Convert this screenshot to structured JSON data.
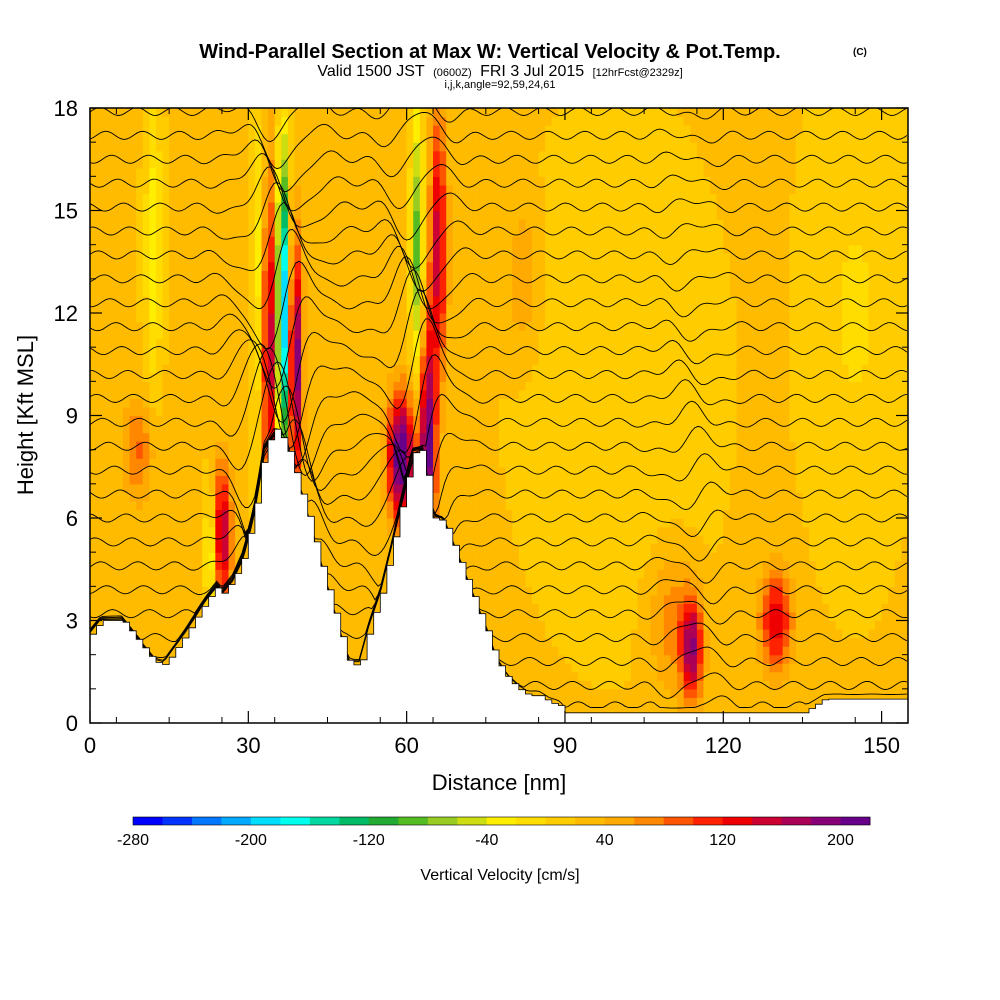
{
  "chart_data": {
    "type": "heatmap",
    "title": "Wind-Parallel Section at Max W: Vertical Velocity & Pot.Temp.",
    "copyright": "(C)",
    "subtitle_prefix": "Valid 1500 JST",
    "subtitle_utc": "(0600Z)",
    "subtitle_date": "FRI 3 Jul 2015",
    "subtitle_forecast": "[12hrFcst@2329z]",
    "subtitle_line2": "i,j,k,angle=92,59,24,61",
    "xlabel": "Distance [nm]",
    "ylabel": "Height [Kft MSL]",
    "xlim": [
      0,
      155
    ],
    "ylim": [
      0,
      18
    ],
    "x_ticks": [
      "0",
      "30",
      "60",
      "90",
      "120",
      "150"
    ],
    "x_tick_values": [
      0,
      30,
      60,
      90,
      120,
      150
    ],
    "y_ticks": [
      "0",
      "3",
      "6",
      "9",
      "12",
      "15",
      "18"
    ],
    "y_tick_values": [
      0,
      3,
      6,
      9,
      12,
      15,
      18
    ],
    "colorbar": {
      "label": "Vertical Velocity [cm/s]",
      "min": -280,
      "max": 220,
      "tick_labels": [
        "-280",
        "-200",
        "-120",
        "-40",
        "40",
        "120",
        "200"
      ],
      "tick_values": [
        -280,
        -200,
        -120,
        -40,
        40,
        120,
        200
      ],
      "colors": [
        "#0000ff",
        "#0033ff",
        "#0077ff",
        "#00aaff",
        "#00ddff",
        "#00ffee",
        "#00d8a0",
        "#00bb66",
        "#22aa33",
        "#55bb22",
        "#99cc22",
        "#ccdd11",
        "#ffee00",
        "#ffdd00",
        "#ffcc00",
        "#ffbb00",
        "#ffaa00",
        "#ff8800",
        "#ff5500",
        "#ff2200",
        "#ee0000",
        "#cc0033",
        "#aa0055",
        "#880077",
        "#660088"
      ]
    },
    "terrain": {
      "description": "Terrain heights along section (Kft)",
      "x": [
        0,
        2,
        6,
        12,
        14,
        18,
        20,
        22,
        24,
        25,
        27,
        29,
        31,
        33,
        35,
        37,
        39,
        41,
        43,
        45,
        47,
        49,
        51,
        53,
        55,
        57,
        59,
        61,
        63,
        65,
        67,
        69,
        71,
        73,
        75,
        77,
        79,
        81,
        83,
        85,
        87,
        89,
        90,
        92,
        95,
        100,
        105,
        110,
        115,
        120,
        125,
        130,
        135,
        139,
        141,
        145,
        150,
        155
      ],
      "y": [
        2.6,
        3.0,
        3.0,
        1.8,
        1.7,
        2.6,
        3.1,
        3.6,
        4.0,
        3.8,
        4.2,
        4.9,
        6.2,
        8.1,
        8.6,
        8.2,
        7.2,
        6.2,
        5.0,
        3.9,
        2.8,
        1.7,
        1.7,
        2.9,
        3.8,
        5.1,
        6.5,
        7.9,
        8.0,
        6.0,
        5.9,
        5.1,
        4.3,
        3.5,
        2.7,
        1.8,
        1.3,
        1.0,
        0.8,
        0.8,
        0.6,
        0.5,
        0.3,
        0.3,
        0.3,
        0.3,
        0.3,
        0.3,
        0.3,
        0.3,
        0.3,
        0.3,
        0.3,
        0.7,
        0.7,
        0.7,
        0.7,
        0.7
      ]
    },
    "features": [
      {
        "x": 25,
        "y": 5.5,
        "w": 150,
        "sx": 1.8,
        "sy": 2.0
      },
      {
        "x": 23,
        "y": 5.0,
        "w": -90,
        "sx": 1.2,
        "sy": 1.8
      },
      {
        "x": 34,
        "y": 11,
        "w": 140,
        "sx": 1.5,
        "sy": 5
      },
      {
        "x": 36.5,
        "y": 12,
        "w": -260,
        "sx": 1.1,
        "sy": 4.5
      },
      {
        "x": 39,
        "y": 10.5,
        "w": 180,
        "sx": 1.3,
        "sy": 3.5
      },
      {
        "x": 32,
        "y": 13,
        "w": -60,
        "sx": 1.2,
        "sy": 5
      },
      {
        "x": 59,
        "y": 7.8,
        "w": 210,
        "sx": 2.5,
        "sy": 1.8
      },
      {
        "x": 64,
        "y": 8,
        "w": 190,
        "sx": 1.5,
        "sy": 3.5
      },
      {
        "x": 62,
        "y": 14,
        "w": -110,
        "sx": 1.2,
        "sy": 4
      },
      {
        "x": 66,
        "y": 14,
        "w": 130,
        "sx": 1.6,
        "sy": 4
      },
      {
        "x": 12,
        "y": 14,
        "w": -60,
        "sx": 1.5,
        "sy": 4
      },
      {
        "x": 9,
        "y": 8,
        "w": 60,
        "sx": 3,
        "sy": 1.5
      },
      {
        "x": 114,
        "y": 2.2,
        "w": 160,
        "sx": 2,
        "sy": 1.5
      },
      {
        "x": 130,
        "y": 3,
        "w": 120,
        "sx": 3,
        "sy": 1.5
      },
      {
        "x": 110,
        "y": 3,
        "w": 50,
        "sx": 4,
        "sy": 2
      },
      {
        "x": 82,
        "y": 13,
        "w": 40,
        "sx": 3,
        "sy": 2
      },
      {
        "x": 100,
        "y": 10,
        "w": -20,
        "sx": 15,
        "sy": 6
      },
      {
        "x": 145,
        "y": 12,
        "w": -25,
        "sx": 8,
        "sy": 6
      }
    ],
    "isentrope_levels": [
      0.5,
      1.1,
      1.8,
      2.5,
      3.2,
      3.9,
      4.6,
      5.3,
      6.0,
      6.7,
      7.4,
      8.1,
      8.8,
      9.5,
      10.2,
      10.9,
      11.6,
      12.3,
      13.0,
      13.7,
      14.4,
      15.1,
      15.8,
      16.5,
      17.2,
      17.9
    ],
    "grid": false,
    "legend": "bottom"
  }
}
